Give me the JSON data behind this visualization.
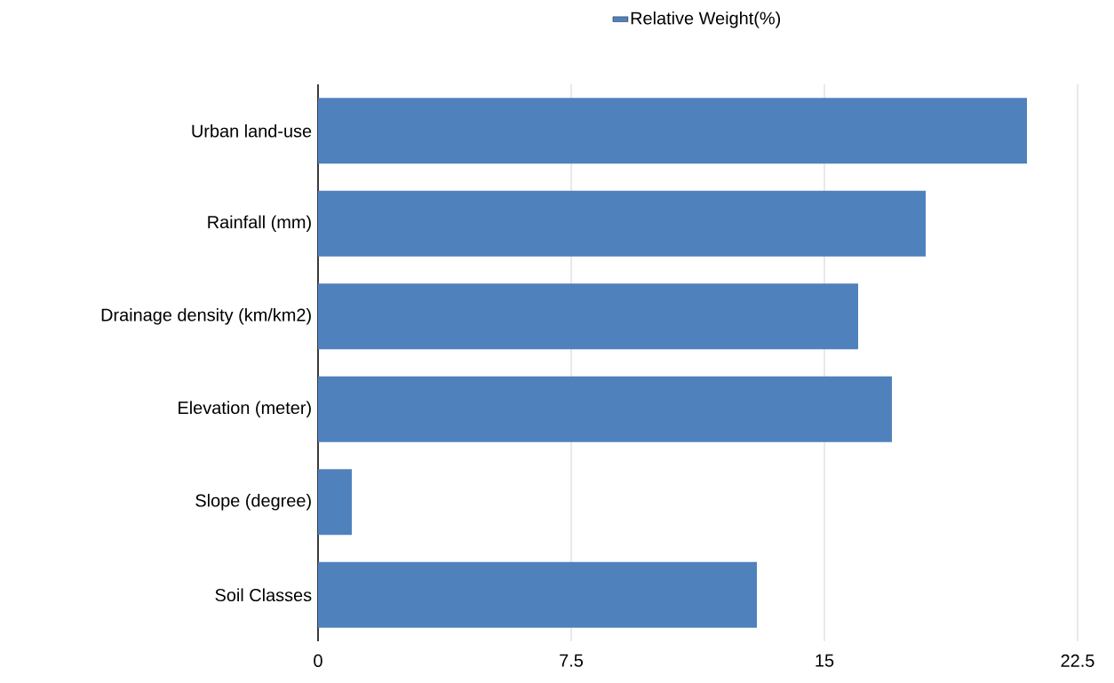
{
  "chart_data": {
    "type": "bar",
    "orientation": "horizontal",
    "categories": [
      "Urban land-use",
      "Rainfall (mm)",
      "Drainage density (km/km2)",
      "Elevation (meter)",
      "Slope (degree)",
      "Soil Classes"
    ],
    "series": [
      {
        "name": "Relative Weight(%)",
        "color": "#4f81bd",
        "values": [
          21.0,
          18.0,
          16.0,
          17.0,
          1.0,
          13.0
        ]
      }
    ],
    "xlim": [
      0,
      22.5
    ],
    "xticks": [
      0,
      7.5,
      15,
      22.5
    ],
    "grid": "x",
    "legend": "top"
  }
}
